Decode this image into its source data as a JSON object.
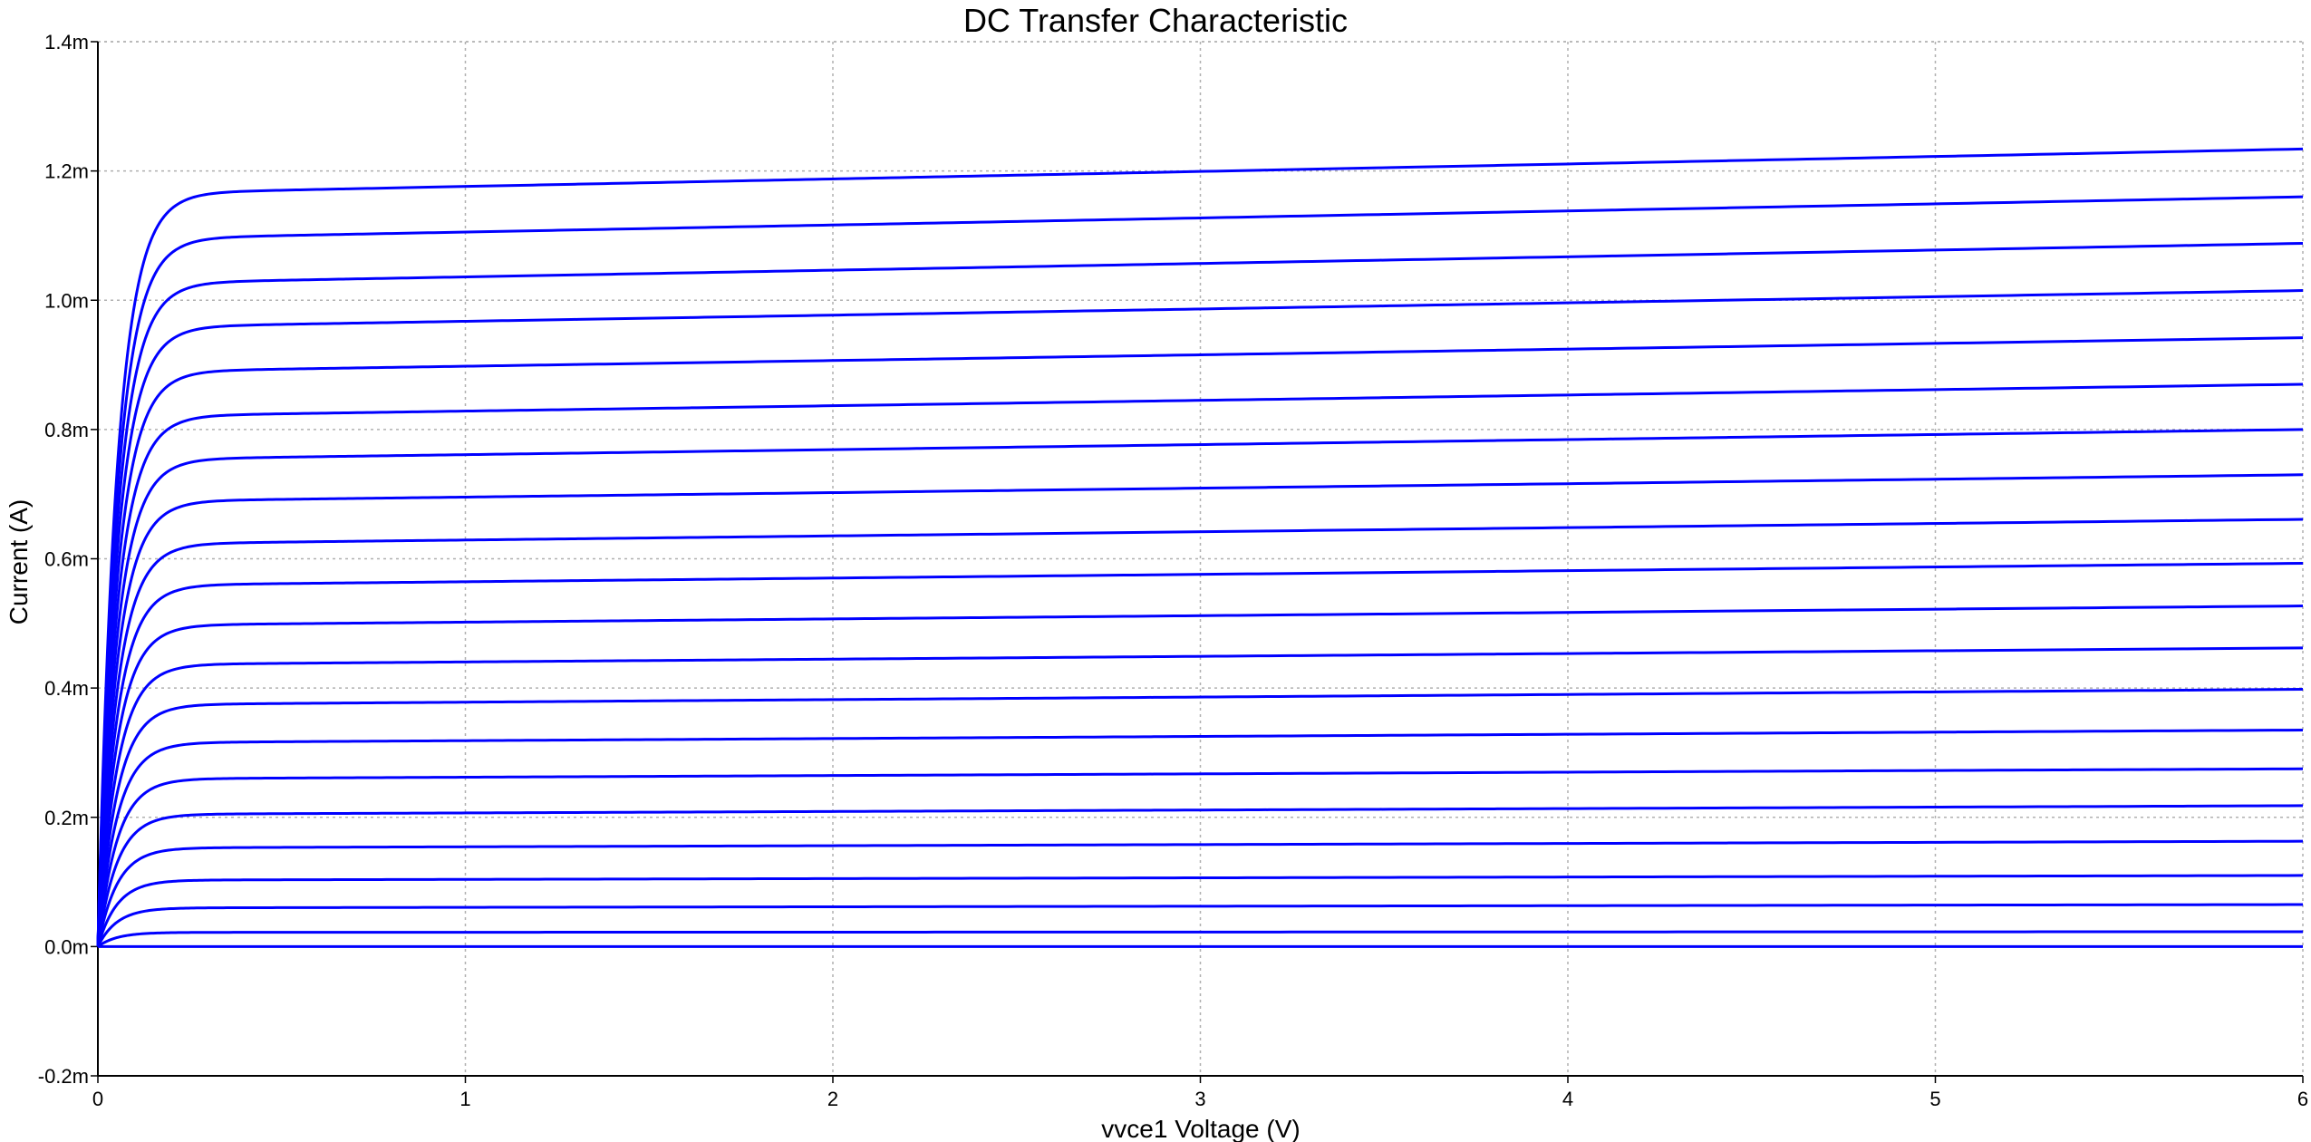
{
  "chart_data": {
    "type": "line",
    "title": "DC Transfer Characteristic",
    "xlabel": "vvce1 Voltage (V)",
    "ylabel": "Current (A)",
    "xlim": [
      0,
      6
    ],
    "ylim": [
      -0.2,
      1.4
    ],
    "x_ticks": [
      "0",
      "1",
      "2",
      "3",
      "4",
      "5",
      "6"
    ],
    "y_ticks": [
      "-0.2m",
      "0.0m",
      "0.2m",
      "0.4m",
      "0.6m",
      "0.8m",
      "1.0m",
      "1.2m",
      "1.4m"
    ],
    "x_tick_values": [
      0,
      1,
      2,
      3,
      4,
      5,
      6
    ],
    "y_tick_values": [
      -0.2,
      0,
      0.2,
      0.4,
      0.6,
      0.8,
      1.0,
      1.2,
      1.4
    ],
    "y_unit": "mA",
    "grid": true,
    "line_color": "#0000ff",
    "saturation_knee_V": 0.22,
    "series": [
      {
        "sat_mA": 0.0,
        "end_mA": 0.0
      },
      {
        "sat_mA": 0.022,
        "end_mA": 0.023
      },
      {
        "sat_mA": 0.06,
        "end_mA": 0.065
      },
      {
        "sat_mA": 0.103,
        "end_mA": 0.11
      },
      {
        "sat_mA": 0.153,
        "end_mA": 0.163
      },
      {
        "sat_mA": 0.205,
        "end_mA": 0.218
      },
      {
        "sat_mA": 0.26,
        "end_mA": 0.275
      },
      {
        "sat_mA": 0.316,
        "end_mA": 0.335
      },
      {
        "sat_mA": 0.375,
        "end_mA": 0.398
      },
      {
        "sat_mA": 0.437,
        "end_mA": 0.462
      },
      {
        "sat_mA": 0.498,
        "end_mA": 0.527
      },
      {
        "sat_mA": 0.56,
        "end_mA": 0.593
      },
      {
        "sat_mA": 0.624,
        "end_mA": 0.661
      },
      {
        "sat_mA": 0.69,
        "end_mA": 0.73
      },
      {
        "sat_mA": 0.755,
        "end_mA": 0.8
      },
      {
        "sat_mA": 0.822,
        "end_mA": 0.87
      },
      {
        "sat_mA": 0.891,
        "end_mA": 0.942
      },
      {
        "sat_mA": 0.96,
        "end_mA": 1.015
      },
      {
        "sat_mA": 1.028,
        "end_mA": 1.088
      },
      {
        "sat_mA": 1.097,
        "end_mA": 1.16
      },
      {
        "sat_mA": 1.167,
        "end_mA": 1.234
      }
    ]
  }
}
